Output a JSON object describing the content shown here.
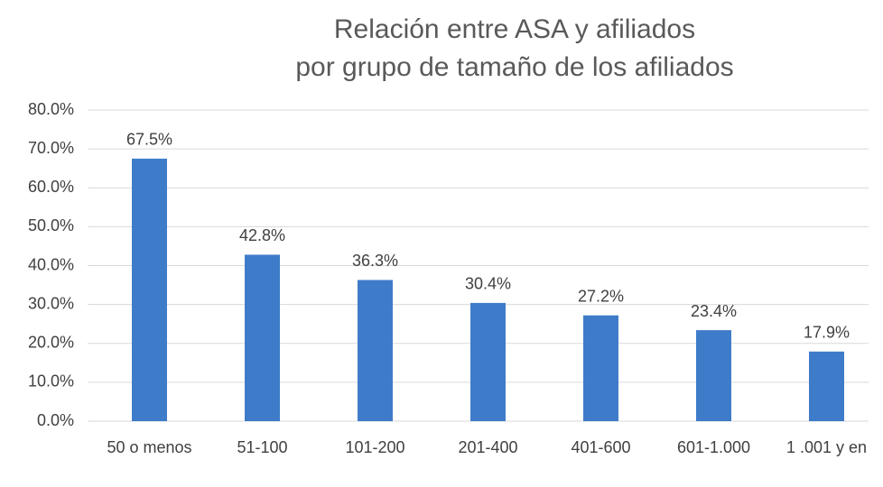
{
  "chart_data": {
    "type": "bar",
    "title": [
      "Relación entre ASA y afiliados",
      "por grupo de tamaño de los afiliados"
    ],
    "categories": [
      "50 o menos",
      "51-100",
      "101-200",
      "201-400",
      "401-600",
      "601-1.000",
      "1 .001 y en"
    ],
    "values": [
      67.5,
      42.8,
      36.3,
      30.4,
      27.2,
      23.4,
      17.9
    ],
    "value_labels": [
      "67.5%",
      "42.8%",
      "36.3%",
      "30.4%",
      "27.2%",
      "23.4%",
      "17.9%"
    ],
    "color": "#3e7cc9",
    "ylim": [
      0,
      80
    ],
    "yticks": [
      {
        "value": 0,
        "label": "0.0%"
      },
      {
        "value": 10,
        "label": "10.0%"
      },
      {
        "value": 20,
        "label": "20.0%"
      },
      {
        "value": 30,
        "label": "30.0%"
      },
      {
        "value": 40,
        "label": "40.0%"
      },
      {
        "value": 50,
        "label": "50.0%"
      },
      {
        "value": 60,
        "label": "60.0%"
      },
      {
        "value": 70,
        "label": "70.0%"
      },
      {
        "value": 80,
        "label": "80.0%"
      }
    ],
    "grid": true
  }
}
